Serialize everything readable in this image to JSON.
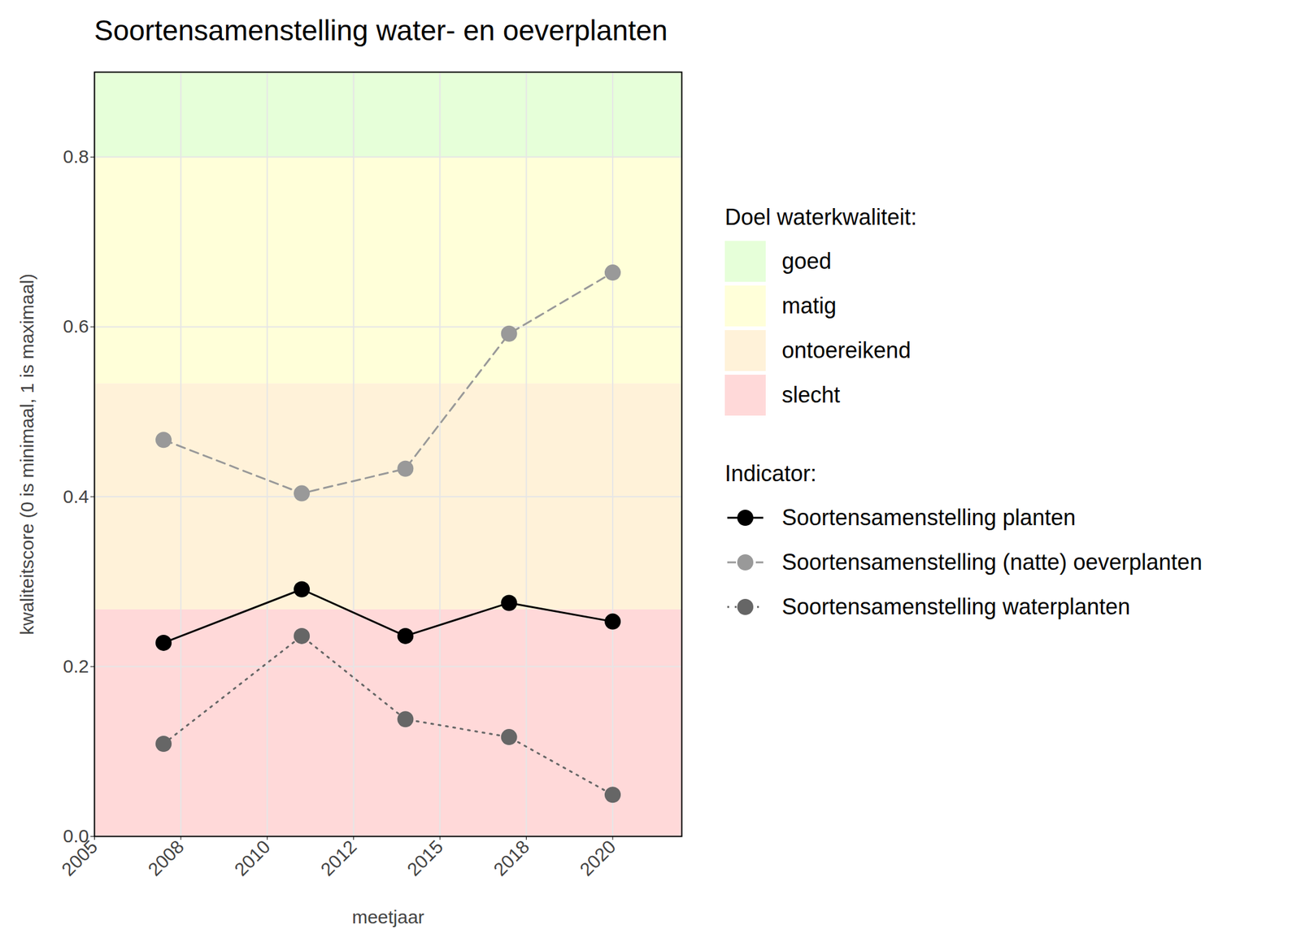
{
  "chart_data": {
    "type": "line",
    "title": "Soortensamenstelling water- en oeverplanten",
    "x_label": "meetjaar",
    "y_label": "kwaliteitscore (0 is minimaal, 1 is maximaal)",
    "x": [
      2007,
      2011,
      2014,
      2017,
      2020
    ],
    "series": [
      {
        "name": "Soortensamenstelling planten",
        "color": "#000000",
        "line_style": "solid",
        "marker": "circle",
        "values": [
          0.228,
          0.291,
          0.236,
          0.275,
          0.253
        ]
      },
      {
        "name": "Soortensamenstelling (natte) oeverplanten",
        "color": "#999999",
        "line_style": "dashed",
        "marker": "circle",
        "values": [
          0.467,
          0.404,
          0.433,
          0.592,
          0.664
        ]
      },
      {
        "name": "Soortensamenstelling waterplanten",
        "color": "#666666",
        "line_style": "dotted",
        "marker": "circle",
        "values": [
          0.109,
          0.236,
          0.138,
          0.117,
          0.049
        ]
      }
    ],
    "xlim": [
      2005,
      2022
    ],
    "xticks": [
      2005,
      {
        "value": 2007.5,
        "label": "2008"
      },
      2010,
      {
        "value": 2012.5,
        "label": "2012"
      },
      2015,
      {
        "value": 2017.5,
        "label": "2018"
      },
      2020
    ],
    "ylim": [
      0,
      0.9
    ],
    "yticks": [
      {
        "value": 0,
        "label": "0.0"
      },
      0.2,
      0.4,
      0.6,
      0.8
    ],
    "grid": true,
    "legend": "right",
    "legend_title": "Indicator:",
    "bands_title": "Doel waterkwaliteit:",
    "bands": [
      {
        "name": "goed",
        "color": "#e6ffd9",
        "from": 0.8,
        "to": 1
      },
      {
        "name": "matig",
        "color": "#ffffd9",
        "from": 0.533,
        "to": 0.8
      },
      {
        "name": "ontoereikend",
        "color": "#fff2d9",
        "from": 0.267,
        "to": 0.533
      },
      {
        "name": "slecht",
        "color": "#ffd9d9",
        "from": 0,
        "to": 0.267
      }
    ]
  }
}
